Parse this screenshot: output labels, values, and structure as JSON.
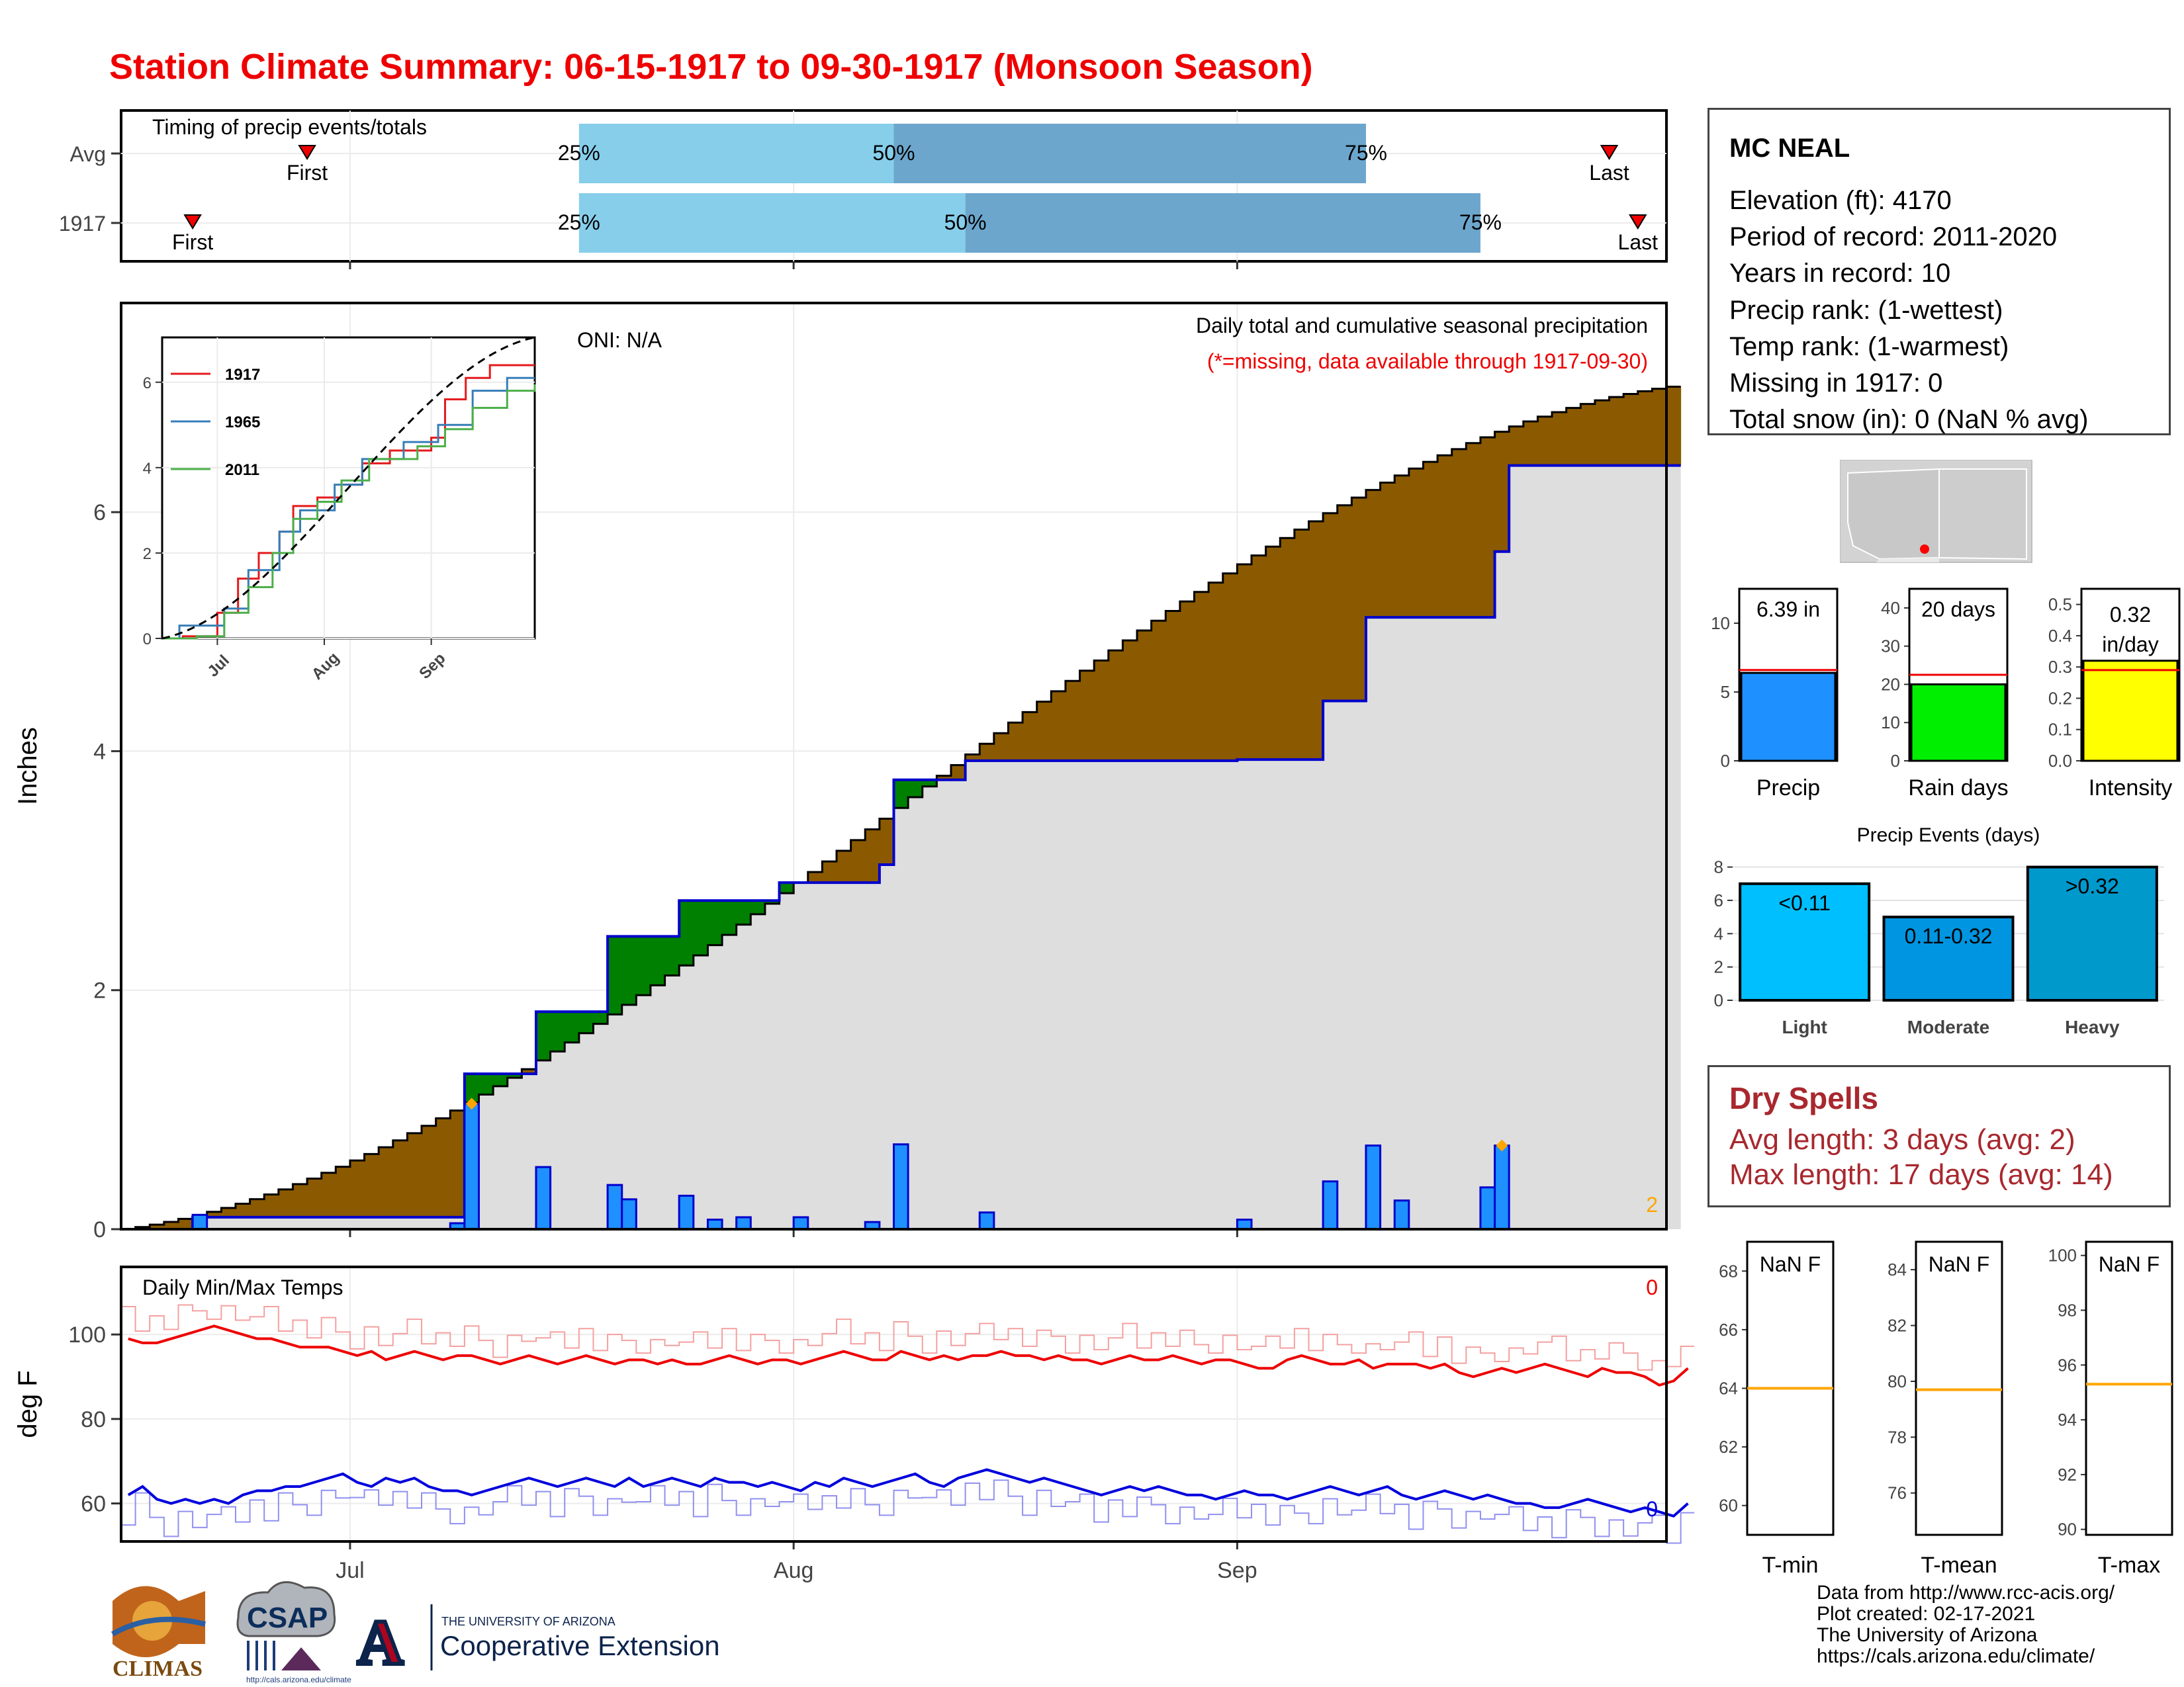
{
  "title": "Station Climate Summary: 06-15-1917 to 09-30-1917 (Monsoon Season)",
  "timing_panel": {
    "title": "Timing of precip events/totals",
    "rows": [
      {
        "label": "Avg",
        "first_label": "First",
        "last_label": "Last",
        "p25": "25%",
        "p50": "50%",
        "p75": "75%"
      },
      {
        "label": "1917",
        "first_label": "First",
        "last_label": "Last",
        "p25": "25%",
        "p50": "50%",
        "p75": "75%"
      }
    ]
  },
  "main_panel": {
    "ylabel": "Inches",
    "oni": "ONI: N/A",
    "subtitle": "Daily total and cumulative seasonal precipitation",
    "missing_note": "(*=missing, data available through 1917-09-30)",
    "corner_count": "2",
    "colors": {
      "above": "#008000",
      "below": "#8b5a00",
      "bars": "#1e90ff",
      "avg_cum": "#0000cc",
      "fill": "#dedede"
    }
  },
  "inset": {
    "legend": [
      {
        "name": "1917",
        "color": "#e41a1c"
      },
      {
        "name": "1965",
        "color": "#377eb8"
      },
      {
        "name": "2011",
        "color": "#4daf4a"
      }
    ],
    "x_ticks": [
      "Jul",
      "Aug",
      "Sep"
    ],
    "y_ticks": [
      "0",
      "2",
      "4",
      "6"
    ]
  },
  "temp_panel": {
    "title": "Daily Min/Max Temps",
    "ylabel": "deg F",
    "max_missing": "0",
    "min_missing": "0",
    "y_ticks": [
      "60",
      "80",
      "100"
    ],
    "x_ticks": [
      "Jul",
      "Aug",
      "Sep"
    ]
  },
  "station": {
    "name": "MC NEAL",
    "lines": [
      "Elevation (ft): 4170",
      "Period of record: 2011-2020",
      "Years in record: 10",
      "Precip rank:  (1-wettest)",
      "Temp rank:  (1-warmest)",
      "Missing in 1917: 0",
      "Total snow (in): 0 (NaN % avg)"
    ]
  },
  "summary_bars": [
    {
      "label": "Precip",
      "value_label": "6.39 in",
      "value": 6.39,
      "avg": 6.6,
      "ymax": 12.5,
      "ticks": [
        "0",
        "5",
        "10"
      ],
      "tick_vals": [
        0,
        5,
        10
      ],
      "color": "#1e90ff"
    },
    {
      "label": "Rain days",
      "value_label": "20 days",
      "value": 20,
      "avg": 22.5,
      "ymax": 45,
      "ticks": [
        "0",
        "10",
        "20",
        "30",
        "40"
      ],
      "tick_vals": [
        0,
        10,
        20,
        30,
        40
      ],
      "color": "#00ee00"
    },
    {
      "label": "Intensity",
      "value_label": "0.32 in/day",
      "value": 0.32,
      "avg": 0.29,
      "ymax": 0.55,
      "ticks": [
        "0.0",
        "0.1",
        "0.2",
        "0.3",
        "0.4",
        "0.5"
      ],
      "tick_vals": [
        0,
        0.1,
        0.2,
        0.3,
        0.4,
        0.5
      ],
      "color": "#ffff00"
    }
  ],
  "precip_events": {
    "title": "Precip Events (days)",
    "categories": [
      "Light",
      "Moderate",
      "Heavy"
    ],
    "bar_labels": [
      "<0.11",
      "0.11-0.32",
      ">0.32"
    ],
    "values": [
      7,
      5,
      8
    ],
    "ylim": [
      0,
      8.5
    ],
    "y_ticks": [
      "0",
      "2",
      "4",
      "6",
      "8"
    ],
    "colors": [
      "#00bfff",
      "#0095e0",
      "#0099cc"
    ]
  },
  "dry_spells": {
    "title": "Dry Spells",
    "avg_length": "Avg length: 3 days (avg: 2)",
    "max_length": "Max length: 17 days (avg: 14)"
  },
  "temp_summary": [
    {
      "label": "T-min",
      "value_label": "NaN F",
      "avg": 64,
      "ylim": [
        59,
        69
      ],
      "ticks": [
        "60",
        "62",
        "64",
        "66",
        "68"
      ],
      "tick_vals": [
        60,
        62,
        64,
        66,
        68
      ]
    },
    {
      "label": "T-mean",
      "value_label": "NaN F",
      "avg": 79.7,
      "ylim": [
        74.5,
        85
      ],
      "ticks": [
        "76",
        "78",
        "80",
        "82",
        "84"
      ],
      "tick_vals": [
        76,
        78,
        80,
        82,
        84
      ]
    },
    {
      "label": "T-max",
      "value_label": "NaN F",
      "avg": 95.3,
      "ylim": [
        89.8,
        100.5
      ],
      "ticks": [
        "90",
        "92",
        "94",
        "96",
        "98",
        "100"
      ],
      "tick_vals": [
        90,
        92,
        94,
        96,
        98,
        100
      ]
    }
  ],
  "credits": [
    "Data from http://www.rcc-acis.org/",
    "Plot created: 02-17-2021",
    "The University of Arizona",
    "https://cals.arizona.edu/climate/"
  ],
  "logos": {
    "climas": "CLIMAS",
    "csap": "CSAP",
    "csap_url": "http://cals.arizona.edu/climate",
    "ua_small": "THE UNIVERSITY OF ARIZONA",
    "ua_big": "Cooperative Extension",
    "ua_letter": "A"
  },
  "chart_data": [
    {
      "type": "area",
      "title": "Daily total and cumulative seasonal precipitation",
      "ylabel": "Inches",
      "xlim": [
        "1917-06-15",
        "1917-09-30"
      ],
      "ylim": [
        0,
        7.75
      ],
      "x_ticks": [
        "Jul",
        "Aug",
        "Sep"
      ],
      "y_ticks": [
        0,
        2,
        4,
        6
      ],
      "cumulative_1917": {
        "dates": [
          "1917-06-15",
          "1917-06-20",
          "1917-07-08",
          "1917-07-09",
          "1917-07-14",
          "1917-07-19",
          "1917-07-24",
          "1917-07-31",
          "1917-08-07",
          "1917-08-08",
          "1917-08-13",
          "1917-09-01",
          "1917-09-07",
          "1917-09-10",
          "1917-09-11",
          "1917-09-19",
          "1917-09-20",
          "1917-09-30"
        ],
        "values": [
          0.0,
          0.1,
          0.1,
          1.3,
          1.82,
          2.45,
          2.75,
          2.9,
          3.05,
          3.76,
          3.92,
          3.93,
          4.42,
          5.12,
          5.12,
          5.67,
          6.39,
          6.39
        ]
      },
      "daily_bars_1917": {
        "dates": [
          "1917-06-20",
          "1917-07-08",
          "1917-07-09",
          "1917-07-14",
          "1917-07-19",
          "1917-07-20",
          "1917-07-24",
          "1917-07-26",
          "1917-07-28",
          "1917-08-01",
          "1917-08-06",
          "1917-08-08",
          "1917-08-14",
          "1917-09-01",
          "1917-09-07",
          "1917-09-10",
          "1917-09-12",
          "1917-09-18",
          "1917-09-19"
        ],
        "values": [
          0.12,
          0.05,
          1.05,
          0.52,
          0.37,
          0.25,
          0.28,
          0.08,
          0.1,
          0.1,
          0.06,
          0.71,
          0.14,
          0.08,
          0.4,
          0.7,
          0.24,
          0.35,
          0.7
        ]
      },
      "avg_cumulative_end": 7.05
    },
    {
      "type": "line",
      "title": "Daily Min/Max Temps",
      "ylabel": "deg F",
      "ylim": [
        51,
        116
      ],
      "y_ticks": [
        60,
        80,
        100
      ],
      "series": [
        {
          "name": "Tmax 1917",
          "color": "#ee0000",
          "values": [
            99,
            98,
            98,
            99,
            100,
            101,
            102,
            101,
            100,
            99,
            99,
            98,
            97,
            97,
            97,
            96,
            95,
            96,
            94,
            95,
            96,
            95,
            94,
            95,
            95,
            94,
            93,
            94,
            95,
            94,
            93,
            94,
            95,
            94,
            93,
            94,
            94,
            93,
            94,
            93,
            93,
            94,
            95,
            94,
            93,
            94,
            94,
            93,
            94,
            95,
            96,
            95,
            94,
            94,
            96,
            95,
            94,
            95,
            94,
            95,
            95,
            96,
            95,
            95,
            94,
            95,
            94,
            94,
            93,
            94,
            95,
            94,
            94,
            95,
            94,
            93,
            94,
            94,
            93,
            92,
            92,
            94,
            95,
            94,
            93,
            93,
            94,
            92,
            93,
            93,
            93,
            92,
            93,
            91,
            90,
            91,
            92,
            91,
            92,
            93,
            92,
            91,
            90,
            92,
            91,
            91,
            90,
            88,
            89,
            92
          ]
        },
        {
          "name": "Tmin 1917",
          "color": "#0000dd",
          "values": [
            62,
            64,
            61,
            60,
            61,
            60,
            61,
            60,
            62,
            63,
            63,
            64,
            64,
            65,
            66,
            67,
            65,
            64,
            66,
            65,
            66,
            64,
            63,
            63,
            62,
            63,
            64,
            65,
            66,
            65,
            64,
            65,
            66,
            65,
            64,
            66,
            64,
            65,
            66,
            65,
            64,
            66,
            65,
            65,
            64,
            65,
            64,
            63,
            65,
            64,
            66,
            65,
            64,
            65,
            66,
            67,
            65,
            64,
            66,
            67,
            68,
            67,
            66,
            65,
            66,
            65,
            64,
            63,
            62,
            63,
            64,
            63,
            64,
            63,
            62,
            62,
            61,
            62,
            63,
            62,
            62,
            61,
            62,
            63,
            64,
            63,
            62,
            63,
            64,
            62,
            61,
            62,
            63,
            62,
            61,
            62,
            61,
            60,
            60,
            59,
            59,
            60,
            61,
            60,
            59,
            58,
            59,
            58,
            57,
            60
          ]
        }
      ]
    }
  ]
}
